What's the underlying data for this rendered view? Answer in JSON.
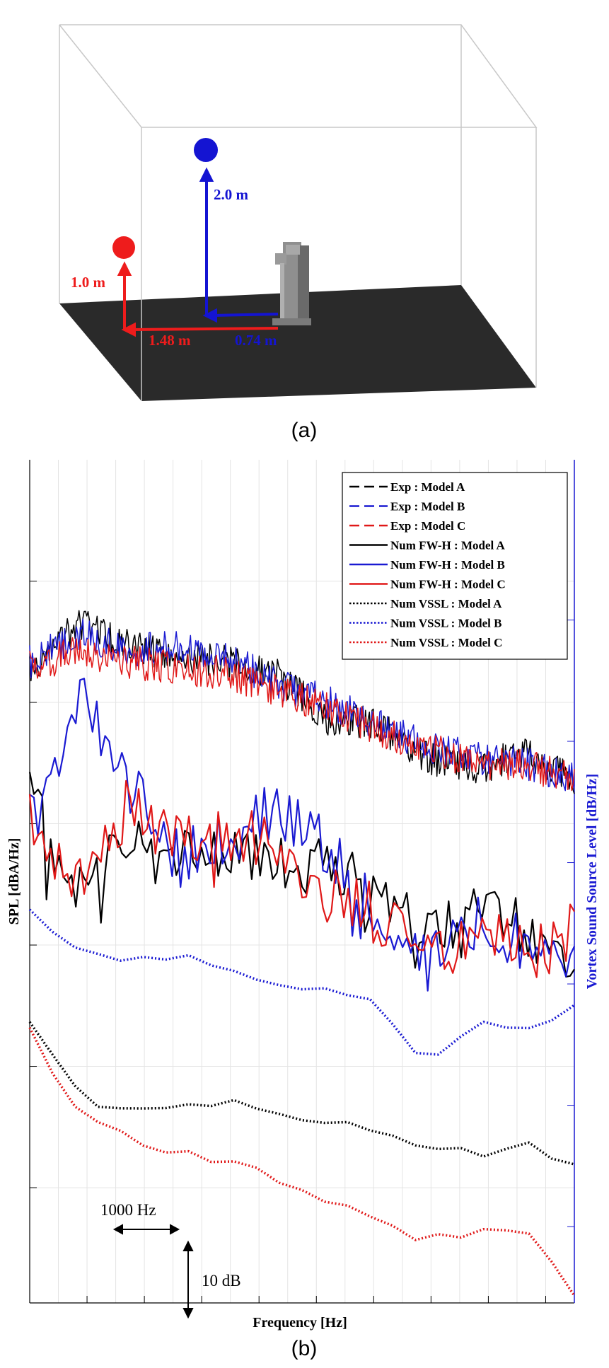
{
  "figure_a": {
    "caption": "(a)",
    "labels": {
      "red_height": "1.0 m",
      "blue_height": "2.0 m",
      "red_distance": "1.48 m",
      "blue_distance": "0.74 m"
    },
    "colors": {
      "red": "#ee1c1c",
      "blue": "#1414d2",
      "floor": "#2a2a2a",
      "box": "#c8c8c8"
    }
  },
  "figure_b": {
    "caption": "(b)",
    "annotations": {
      "freq_span": "1000 Hz",
      "level_span": "10 dB"
    }
  },
  "chart_data": {
    "type": "line",
    "title": "",
    "xlabel": "Frequency [Hz]",
    "ylabel": "SPL [dBA/Hz]",
    "ylabel_right": "Vortex Sound Source Level [dB/Hz]",
    "grid": true,
    "legend_position": "top-right",
    "scale": {
      "x_bar_hz": 1000,
      "y_bar_db": 10
    },
    "series": [
      {
        "name": "Exp : Model A",
        "color": "#000000",
        "style": "dashed",
        "y": [
          0.43,
          0.34,
          0.38,
          0.4,
          0.41,
          0.43,
          0.51,
          0.52,
          0.58,
          0.6,
          0.57,
          0.62
        ]
      },
      {
        "name": "Exp : Model B",
        "color": "#1a1ad2",
        "style": "dashed",
        "y": [
          0.41,
          0.36,
          0.39,
          0.38,
          0.4,
          0.45,
          0.48,
          0.52,
          0.56,
          0.58,
          0.59,
          0.62
        ]
      },
      {
        "name": "Exp : Model C",
        "color": "#e01818",
        "style": "dashed",
        "y": [
          0.42,
          0.39,
          0.41,
          0.42,
          0.43,
          0.46,
          0.49,
          0.53,
          0.56,
          0.59,
          0.59,
          0.62
        ]
      },
      {
        "name": "Num FW-H : Model A",
        "color": "#000000",
        "style": "solid",
        "y": [
          0.66,
          0.81,
          0.74,
          0.76,
          0.73,
          0.78,
          0.76,
          0.82,
          0.91,
          0.85,
          0.88,
          0.95
        ]
      },
      {
        "name": "Num FW-H : Model B",
        "color": "#1a1ad2",
        "style": "solid",
        "y": [
          0.7,
          0.47,
          0.62,
          0.76,
          0.72,
          0.66,
          0.75,
          0.84,
          0.95,
          0.88,
          0.91,
          0.92
        ]
      },
      {
        "name": "Num FW-H : Model C",
        "color": "#e01818",
        "style": "solid",
        "y": [
          0.68,
          0.8,
          0.66,
          0.72,
          0.71,
          0.74,
          0.82,
          0.86,
          0.94,
          0.9,
          0.93,
          0.89
        ]
      },
      {
        "name": "Num VSSL : Model A",
        "color": "#000000",
        "style": "dotted",
        "y": [
          1.06,
          1.18,
          1.21,
          1.2,
          1.19,
          1.21,
          1.23,
          1.24,
          1.27,
          1.29,
          1.27,
          1.31
        ]
      },
      {
        "name": "Num VSSL : Model B",
        "color": "#1a1ad2",
        "style": "dotted",
        "y": [
          0.86,
          0.93,
          0.95,
          0.93,
          0.95,
          0.98,
          1.0,
          1.02,
          1.12,
          1.05,
          1.07,
          1.03
        ]
      },
      {
        "name": "Num VSSL : Model C",
        "color": "#e01818",
        "style": "dotted",
        "y": [
          1.07,
          1.22,
          1.26,
          1.28,
          1.3,
          1.33,
          1.37,
          1.4,
          1.44,
          1.43,
          1.42,
          1.53
        ]
      }
    ]
  }
}
